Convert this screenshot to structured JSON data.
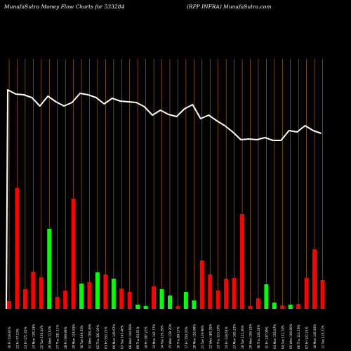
{
  "header": {
    "title_left": "MunafaSutra  Money Flow  Charts for 533284",
    "title_right": "(RPP INFRA) MunafaSutra.com"
  },
  "colors": {
    "background": "#000000",
    "grid": "#ff9900",
    "line": "#ffffff",
    "up": "#00ff00",
    "down": "#ff0000",
    "label": "#ffffff"
  },
  "chart_data": {
    "type": "bar",
    "title": "MunafaSutra  Money Flow  Charts for 533284",
    "series": [
      {
        "kind": "bar",
        "values": [
          11,
          172,
          28,
          53,
          45,
          114,
          17,
          26,
          157,
          36,
          38,
          52,
          49,
          43,
          29,
          24,
          6,
          4,
          32,
          28,
          19,
          4,
          24,
          12,
          69,
          49,
          26,
          43,
          44,
          135,
          4,
          15,
          35,
          9,
          5,
          6,
          7,
          44,
          85,
          41
        ],
        "colors": [
          "down",
          "down",
          "down",
          "down",
          "down",
          "up",
          "down",
          "down",
          "down",
          "up",
          "down",
          "up",
          "down",
          "up",
          "down",
          "down",
          "up",
          "up",
          "down",
          "up",
          "up",
          "down",
          "up",
          "up",
          "down",
          "down",
          "down",
          "down",
          "down",
          "down",
          "down",
          "down",
          "up",
          "up",
          "down",
          "up",
          "down",
          "down",
          "down",
          "down"
        ]
      },
      {
        "kind": "line",
        "values": [
          312,
          306,
          305,
          301,
          289,
          303,
          295,
          289,
          294,
          307,
          305,
          301,
          292,
          300,
          296,
          295,
          294,
          288,
          276,
          283,
          277,
          274,
          285,
          291,
          271,
          276,
          268,
          261,
          252,
          241,
          242,
          241,
          244,
          240,
          240,
          254,
          252,
          261,
          254,
          250
        ]
      }
    ],
    "categories": [
      "16 Fri 118.85%",
      "22 Fri 77.13%",
      "23 Fri 171.62%",
      "24 Mon 178.24%",
      "25 Tue 150.44%",
      "26 Wed 72.07%",
      "27 Thu 191.11%",
      "28 Fri 169.98%",
      "29 Mon 114.83%",
      "30 Tue 109.33%",
      "31 Wed 109.26%",
      "02 Thu 101.03%",
      "03 Fri 152.21%",
      "06 Mon 149.67%",
      "07 Tue 143.46%",
      "08 Wed 144.68%",
      "09 Thu 63.61%",
      "10 Fri 197.22%",
      "13 Mon 142.77%",
      "14 Tue 126.29%",
      "15 Wed 139.70%",
      "16 Thu 89.17%",
      "17 Fri 150.35%",
      "20 Mon 116.80%",
      "21 Tue 129.98%",
      "22 Wed 160.26%",
      "23 Thu 113.20%",
      "24 Fri 118.64%",
      "27 Mon 105.23%",
      "28 Tue 122.46%",
      "29 Wed 194.15%",
      "30 Thu 120.28%",
      "31 Fri 137.09%",
      "03 Mon 153.87%",
      "04 Tue 132.74%",
      "05 Wed 194.00%",
      "06 Thu 114.19%",
      "07 Fri 122.21%",
      "10 Mon 145.83%",
      "11 Tue 116.21%"
    ],
    "xlabel": "",
    "ylabel": "",
    "grid": true
  }
}
